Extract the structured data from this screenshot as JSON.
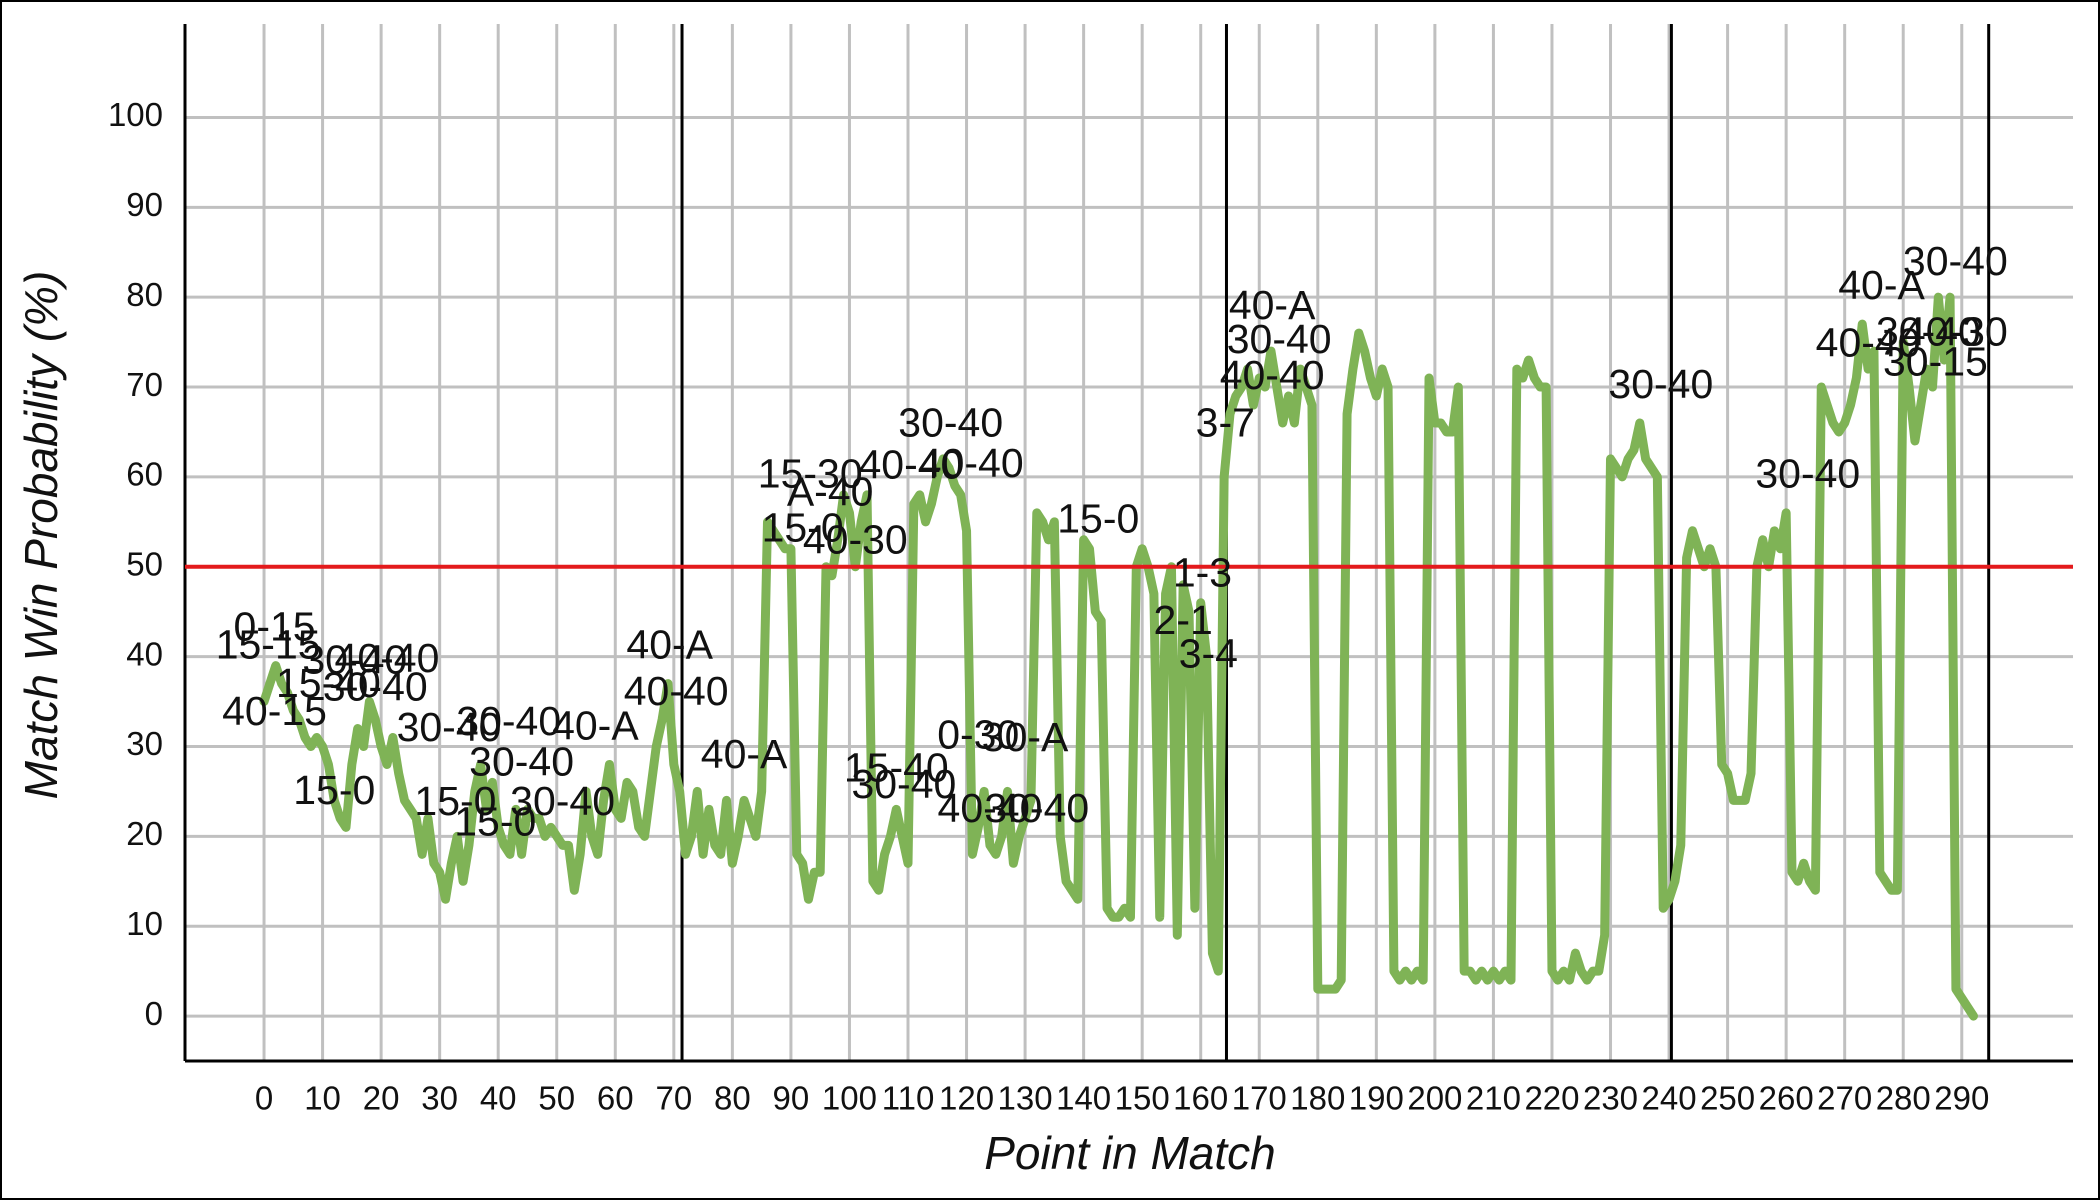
{
  "chart_data": {
    "type": "line",
    "x_label": "Point in Match",
    "y_label": "Match Win Probability (%)",
    "xlim": [
      -13.5,
      309
    ],
    "ylim": [
      -5,
      110.4
    ],
    "xticks": [
      0,
      10,
      20,
      30,
      40,
      50,
      60,
      70,
      80,
      90,
      100,
      110,
      120,
      130,
      140,
      150,
      160,
      170,
      180,
      190,
      200,
      210,
      220,
      230,
      240,
      250,
      260,
      270,
      280,
      290
    ],
    "yticks": [
      0,
      10,
      20,
      30,
      40,
      50,
      60,
      70,
      80,
      90,
      100
    ],
    "grid": true,
    "reference_line": 50,
    "reference_color": "#e31a1c",
    "set_boundaries": [
      71.4,
      164.4,
      240.4,
      294.6
    ],
    "series": [
      {
        "color": "#7fb356",
        "values": [
          35,
          37,
          39,
          37,
          36,
          34,
          33,
          31,
          30,
          31,
          30,
          28,
          24,
          22,
          21,
          28,
          32,
          30,
          35,
          33,
          30,
          28,
          31,
          27,
          24,
          23,
          22,
          18,
          22,
          17,
          16,
          13,
          17,
          20,
          15,
          19,
          25,
          28,
          23,
          26,
          21,
          19,
          18,
          23,
          18,
          23,
          22,
          22,
          20,
          21,
          20,
          19,
          19,
          14,
          18,
          25,
          20,
          18,
          24,
          28,
          23,
          22,
          26,
          25,
          21,
          20,
          25,
          30,
          33,
          37,
          28,
          25,
          18,
          20,
          25,
          18,
          23,
          19,
          18,
          24,
          17,
          20,
          24,
          22,
          20,
          25,
          55,
          54,
          53,
          52,
          52,
          18,
          17,
          13,
          16,
          16,
          50,
          49,
          53,
          58,
          56,
          50,
          55,
          58,
          15,
          14,
          18,
          20,
          23,
          20,
          17,
          57,
          58,
          55,
          57,
          60,
          62,
          61,
          59,
          58,
          54,
          18,
          21,
          25,
          19,
          18,
          20,
          25,
          17,
          20,
          22,
          24,
          56,
          55,
          53,
          55,
          20,
          15,
          14,
          13,
          53,
          52,
          45,
          44,
          12,
          11,
          11,
          12,
          11,
          50,
          52,
          50,
          47,
          11,
          47,
          50,
          9,
          48,
          45,
          12,
          46,
          40,
          7,
          5,
          60,
          67,
          69,
          70,
          72,
          68,
          71,
          70,
          74,
          70,
          66,
          69,
          66,
          72,
          70,
          68,
          3,
          3,
          3,
          3,
          4,
          67,
          72,
          76,
          74,
          71,
          69,
          72,
          70,
          5,
          4,
          5,
          4,
          5,
          4,
          71,
          66,
          66,
          65,
          65,
          70,
          5,
          5,
          4,
          5,
          4,
          5,
          4,
          5,
          4,
          72,
          71,
          73,
          71,
          70,
          70,
          5,
          4,
          5,
          4,
          7,
          5,
          4,
          5,
          5,
          9,
          62,
          61,
          60,
          62,
          63,
          66,
          62,
          61,
          60,
          12,
          13,
          15,
          19,
          51,
          54,
          52,
          50,
          52,
          50,
          28,
          27,
          24,
          24,
          24,
          27,
          50,
          53,
          50,
          54,
          52,
          56,
          16,
          15,
          17,
          15,
          14,
          70,
          68,
          66,
          65,
          66,
          68,
          71,
          77,
          72,
          74,
          16,
          15,
          14,
          14,
          75,
          70,
          64,
          68,
          72,
          70,
          80,
          73,
          80,
          3,
          2,
          1,
          0
        ]
      }
    ],
    "annotations": [
      {
        "text": "0-15",
        "x": 1.8,
        "y": 43
      },
      {
        "text": "15-15",
        "x": 0.7,
        "y": 41
      },
      {
        "text": "30-40",
        "x": 15.5,
        "y": 39.3
      },
      {
        "text": "40-40",
        "x": 21,
        "y": 39.5
      },
      {
        "text": "15-40",
        "x": 11,
        "y": 36.7
      },
      {
        "text": "30-40",
        "x": 19,
        "y": 36.3
      },
      {
        "text": "40-15",
        "x": 1.8,
        "y": 33.6
      },
      {
        "text": "15-0",
        "x": 12,
        "y": 24.8
      },
      {
        "text": "15-0",
        "x": 32.7,
        "y": 23.6
      },
      {
        "text": "15-0",
        "x": 39.5,
        "y": 21.3
      },
      {
        "text": "30-40",
        "x": 31.6,
        "y": 31.8
      },
      {
        "text": "30-40",
        "x": 44,
        "y": 28
      },
      {
        "text": "30-40",
        "x": 51,
        "y": 23.6
      },
      {
        "text": "40-A",
        "x": 56.6,
        "y": 32
      },
      {
        "text": "40-A",
        "x": 69.3,
        "y": 41
      },
      {
        "text": "40-40",
        "x": 70.4,
        "y": 35.8
      },
      {
        "text": "40-A",
        "x": 82,
        "y": 28.8
      },
      {
        "text": "30-40",
        "x": 41.8,
        "y": 32.5
      },
      {
        "text": "15-30",
        "x": 93.3,
        "y": 60
      },
      {
        "text": "A-40",
        "x": 96.7,
        "y": 58
      },
      {
        "text": "15-0",
        "x": 92,
        "y": 54
      },
      {
        "text": "40-30",
        "x": 101,
        "y": 52.7
      },
      {
        "text": "30-40",
        "x": 117.3,
        "y": 65.7
      },
      {
        "text": "40-40",
        "x": 120.8,
        "y": 61.2
      },
      {
        "text": "40-40",
        "x": 110.5,
        "y": 61
      },
      {
        "text": "15-40",
        "x": 108,
        "y": 27.3
      },
      {
        "text": "30-40",
        "x": 109.3,
        "y": 25.5
      },
      {
        "text": "0-30",
        "x": 122,
        "y": 31
      },
      {
        "text": "30-A",
        "x": 130,
        "y": 30.7
      },
      {
        "text": "40-40",
        "x": 124,
        "y": 22.8
      },
      {
        "text": "30-40",
        "x": 132,
        "y": 22.8
      },
      {
        "text": "15-0",
        "x": 142.5,
        "y": 55
      },
      {
        "text": "1-3",
        "x": 160.3,
        "y": 49
      },
      {
        "text": "2-1",
        "x": 157,
        "y": 43.7
      },
      {
        "text": "3-4",
        "x": 161.3,
        "y": 40
      },
      {
        "text": "3-7",
        "x": 164.2,
        "y": 65.7
      },
      {
        "text": "40-A",
        "x": 172.2,
        "y": 78.8
      },
      {
        "text": "30-40",
        "x": 173.4,
        "y": 75
      },
      {
        "text": "40-40",
        "x": 172.2,
        "y": 71
      },
      {
        "text": "30-40",
        "x": 238.6,
        "y": 70
      },
      {
        "text": "30-40",
        "x": 263.7,
        "y": 60
      },
      {
        "text": "40-A",
        "x": 276.3,
        "y": 81
      },
      {
        "text": "40-40",
        "x": 274,
        "y": 74.6
      },
      {
        "text": "30-40",
        "x": 284.3,
        "y": 75.8
      },
      {
        "text": "30-15",
        "x": 285.5,
        "y": 72.5
      },
      {
        "text": "30-40",
        "x": 288.9,
        "y": 83.7
      },
      {
        "text": "40-30",
        "x": 288.9,
        "y": 75.8
      }
    ]
  }
}
